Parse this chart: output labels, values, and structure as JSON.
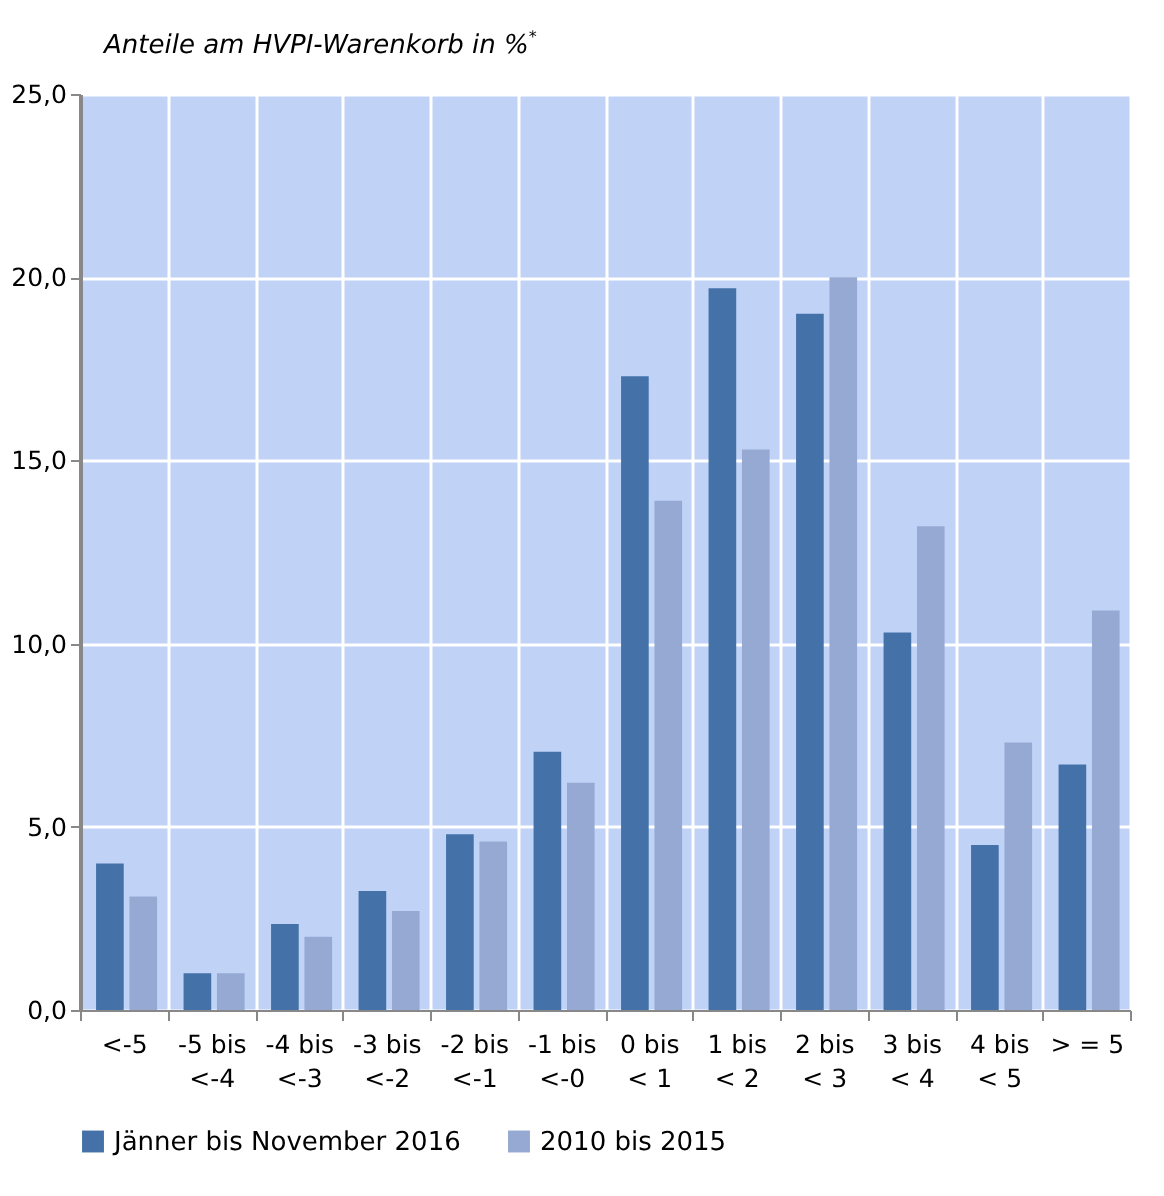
{
  "chart_data": {
    "type": "bar",
    "title": "Anteile am HVPI-Warenkorb in %$^{*}$",
    "categories": [
      "<-5",
      "-5 bis\n<-4",
      "-4 bis\n<-3",
      "-3 bis\n<-2",
      "-2 bis\n<-1",
      "-1 bis\n<-0",
      "0 bis\n< 1",
      "1 bis\n< 2",
      "2 bis\n< 3",
      "3 bis\n< 4",
      "4 bis\n< 5",
      "> = 5"
    ],
    "series": [
      {
        "name": "Jänner bis November 2016",
        "color": "#4472a8",
        "values": [
          4.0,
          1.0,
          2.35,
          3.25,
          4.8,
          7.05,
          17.3,
          19.7,
          19.0,
          10.3,
          4.5,
          6.7
        ]
      },
      {
        "name": "2010 bis 2015",
        "color": "#95a9d2",
        "values": [
          3.1,
          1.0,
          2.0,
          2.7,
          4.6,
          6.2,
          13.9,
          15.3,
          20.0,
          13.2,
          7.3,
          10.9
        ]
      }
    ],
    "ylim": [
      0,
      25
    ],
    "yticks": [
      {
        "value": 0,
        "label": "0,0"
      },
      {
        "value": 5,
        "label": "5,0"
      },
      {
        "value": 10,
        "label": "10,0"
      },
      {
        "value": 15,
        "label": "15,0"
      },
      {
        "value": 20,
        "label": "20,0"
      },
      {
        "value": 25,
        "label": "25,0"
      }
    ],
    "grid": true,
    "legend": "bottom"
  }
}
